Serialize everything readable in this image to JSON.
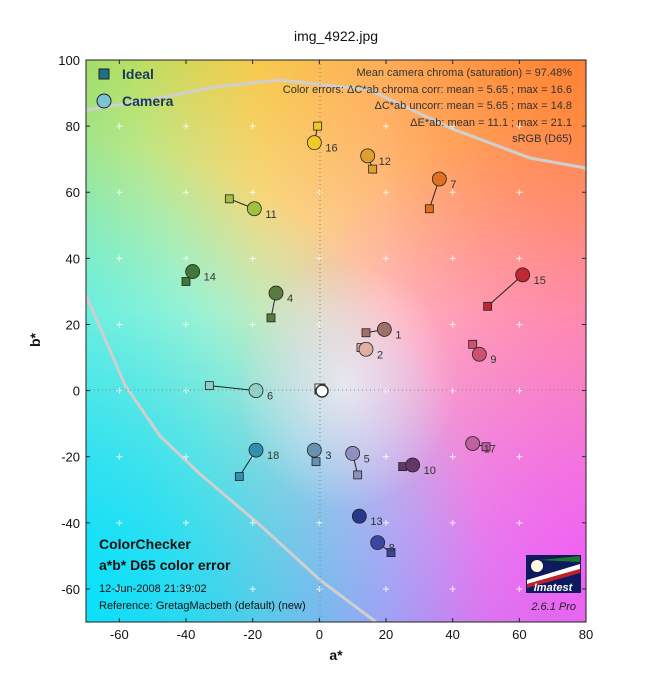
{
  "chart_data": {
    "type": "scatter",
    "title": "img_4922.jpg",
    "xlabel": "a*",
    "ylabel": "b*",
    "xlim": [
      -70,
      80
    ],
    "ylim": [
      -70,
      100
    ],
    "xticks": [
      -60,
      -40,
      -20,
      0,
      20,
      40,
      60,
      80
    ],
    "yticks": [
      -60,
      -40,
      -20,
      0,
      20,
      40,
      60,
      80,
      100
    ],
    "grid": true,
    "legend_position": "top-left",
    "series": [
      {
        "name": "Ideal",
        "marker": "square"
      },
      {
        "name": "Camera",
        "marker": "circle"
      }
    ],
    "patches": [
      {
        "id": "1",
        "ideal": [
          14,
          17.5
        ],
        "camera": [
          19.5,
          18.5
        ],
        "color": "#a0706a"
      },
      {
        "id": "2",
        "ideal": [
          12.5,
          13
        ],
        "camera": [
          14,
          12.5
        ],
        "color": "#e0b0a0"
      },
      {
        "id": "3",
        "ideal": [
          -1,
          -21.5
        ],
        "camera": [
          -1.5,
          -18
        ],
        "color": "#6890b0"
      },
      {
        "id": "4",
        "ideal": [
          -14.5,
          22
        ],
        "camera": [
          -13,
          29.5
        ],
        "color": "#5a7a40"
      },
      {
        "id": "5",
        "ideal": [
          11.5,
          -25.5
        ],
        "camera": [
          10,
          -19
        ],
        "color": "#9090c0"
      },
      {
        "id": "6",
        "ideal": [
          -33,
          1.5
        ],
        "camera": [
          -19,
          0
        ],
        "color": "#90d0c8"
      },
      {
        "id": "7",
        "ideal": [
          33,
          55
        ],
        "camera": [
          36,
          64
        ],
        "color": "#e07020"
      },
      {
        "id": "8",
        "ideal": [
          21.5,
          -49
        ],
        "camera": [
          17.5,
          -46
        ],
        "color": "#3848a0"
      },
      {
        "id": "9",
        "ideal": [
          46,
          14
        ],
        "camera": [
          48,
          11
        ],
        "color": "#d05070"
      },
      {
        "id": "10",
        "ideal": [
          25,
          -23
        ],
        "camera": [
          28,
          -22.5
        ],
        "color": "#603868"
      },
      {
        "id": "11",
        "ideal": [
          -27,
          58
        ],
        "camera": [
          -19.5,
          55
        ],
        "color": "#a0c040"
      },
      {
        "id": "12",
        "ideal": [
          16,
          67
        ],
        "camera": [
          14.5,
          71
        ],
        "color": "#e0a030"
      },
      {
        "id": "13",
        "ideal": [
          11.5,
          -38
        ],
        "camera": [
          12,
          -38
        ],
        "color": "#283890"
      },
      {
        "id": "14",
        "ideal": [
          -40,
          33
        ],
        "camera": [
          -38,
          36
        ],
        "color": "#407838"
      },
      {
        "id": "15",
        "ideal": [
          50.5,
          25.5
        ],
        "camera": [
          61,
          35
        ],
        "color": "#c02830"
      },
      {
        "id": "16",
        "ideal": [
          -0.5,
          80
        ],
        "camera": [
          -1.5,
          75
        ],
        "color": "#f0c828"
      },
      {
        "id": "17",
        "ideal": [
          50,
          -17
        ],
        "camera": [
          46,
          -16
        ],
        "color": "#c060a0"
      },
      {
        "id": "18",
        "ideal": [
          -24,
          -26
        ],
        "camera": [
          -19,
          -18
        ],
        "color": "#3090b0"
      }
    ],
    "annotations": [
      "Mean camera chroma (saturation) = 97.48%",
      "Color errors: ΔC*ab chroma corr:  mean = 5.65 ;  max = 16.6",
      "ΔC*ab uncorr:  mean = 5.65 ;  max = 14.8",
      "ΔE*ab:  mean = 11.1 ;  max = 21.1",
      "sRGB (D65)"
    ],
    "footer": {
      "heading1": "ColorChecker",
      "heading2": "a*b* D65 color error",
      "date": "12-Jun-2008 21:39:02",
      "reference": "Reference: GretagMacbeth (default) (new)",
      "logo": "Imatest",
      "version": "2.6.1  Pro"
    }
  }
}
